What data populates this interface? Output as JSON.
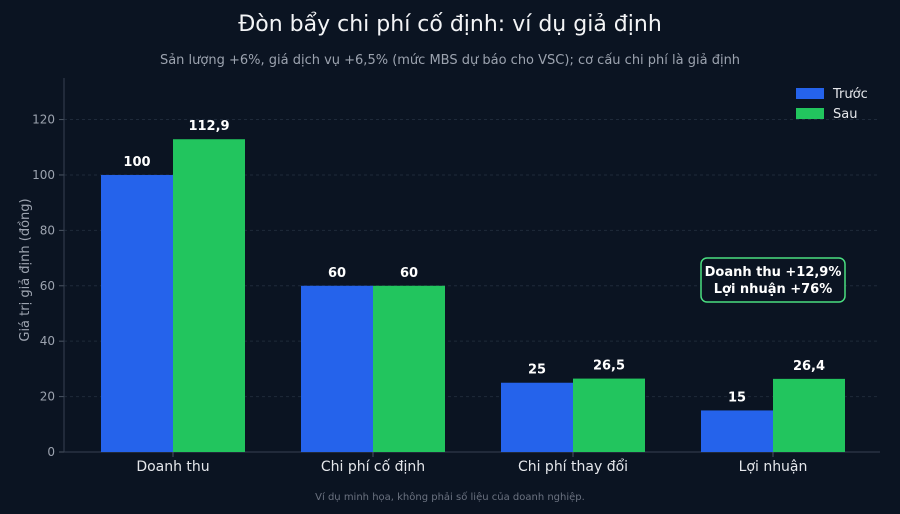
{
  "title": "Đòn bẩy chi phí cố định: ví dụ giả định",
  "subtitle": "Sản lượng +6%, giá dịch vụ +6,5% (mức MBS dự báo cho VSC); cơ cấu chi phí là giả định",
  "footnote": "Ví dụ minh họa, không phải số liệu của doanh nghiệp.",
  "colors": {
    "background": "#0b1422",
    "before": "#2563eb",
    "after": "#22c55e",
    "annotation_border": "#4ade80"
  },
  "chart_data": {
    "type": "bar",
    "categories": [
      "Doanh thu",
      "Chi phí cố định",
      "Chi phí thay đổi",
      "Lợi nhuận"
    ],
    "series": [
      {
        "name": "Trước",
        "values": [
          100,
          60,
          25,
          15
        ],
        "labels": [
          "100",
          "60",
          "25",
          "15"
        ]
      },
      {
        "name": "Sau",
        "values": [
          112.9,
          60,
          26.5,
          26.4
        ],
        "labels": [
          "112,9",
          "60",
          "26,5",
          "26,4"
        ]
      }
    ],
    "xlabel": "",
    "ylabel": "Giá trị giả định (đồng)",
    "ylim": [
      0,
      135
    ],
    "yticks": [
      0,
      20,
      40,
      60,
      80,
      100,
      120
    ],
    "grid": true,
    "legend_position": "top-right",
    "annotation": [
      "Doanh thu +12,9%",
      "Lợi nhuận +76%"
    ]
  }
}
